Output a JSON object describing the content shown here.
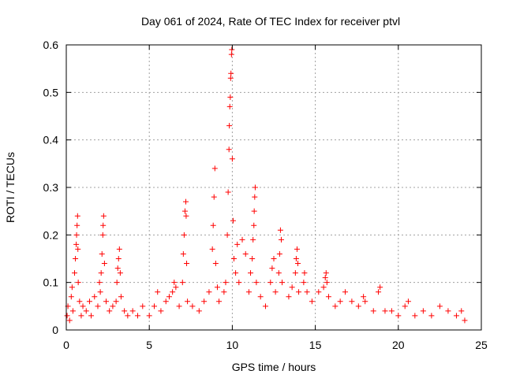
{
  "chart_data": {
    "type": "scatter",
    "title": "Day 061 of 2024, Rate Of TEC Index for receiver ptvl",
    "xlabel": "GPS time / hours",
    "ylabel": "ROTI / TECUs",
    "xlim": [
      0,
      25
    ],
    "ylim": [
      0,
      0.6
    ],
    "xticks": [
      0,
      5,
      10,
      15,
      20,
      25
    ],
    "xtick_labels": [
      "0",
      "5",
      "10",
      "15",
      "20",
      "25"
    ],
    "yticks": [
      0,
      0.1,
      0.2,
      0.3,
      0.4,
      0.5,
      0.6
    ],
    "ytick_labels": [
      "0",
      "0.1",
      "0.2",
      "0.3",
      "0.4",
      "0.5",
      "0.6"
    ],
    "grid": true,
    "marker": "+",
    "marker_color": "#ff0000",
    "series": [
      {
        "name": "ROTI",
        "points": [
          [
            0.05,
            0.03
          ],
          [
            0.1,
            0.05
          ],
          [
            0.2,
            0.02
          ],
          [
            0.3,
            0.07
          ],
          [
            0.35,
            0.09
          ],
          [
            0.4,
            0.04
          ],
          [
            0.5,
            0.12
          ],
          [
            0.55,
            0.15
          ],
          [
            0.6,
            0.18
          ],
          [
            0.62,
            0.2
          ],
          [
            0.65,
            0.22
          ],
          [
            0.68,
            0.24
          ],
          [
            0.7,
            0.17
          ],
          [
            0.72,
            0.1
          ],
          [
            0.8,
            0.06
          ],
          [
            0.9,
            0.03
          ],
          [
            1.0,
            0.05
          ],
          [
            1.2,
            0.04
          ],
          [
            1.4,
            0.06
          ],
          [
            1.5,
            0.03
          ],
          [
            1.7,
            0.07
          ],
          [
            1.9,
            0.05
          ],
          [
            2.0,
            0.1
          ],
          [
            2.05,
            0.08
          ],
          [
            2.1,
            0.12
          ],
          [
            2.15,
            0.16
          ],
          [
            2.2,
            0.2
          ],
          [
            2.22,
            0.22
          ],
          [
            2.25,
            0.24
          ],
          [
            2.3,
            0.14
          ],
          [
            2.4,
            0.06
          ],
          [
            2.6,
            0.04
          ],
          [
            2.8,
            0.05
          ],
          [
            3.0,
            0.06
          ],
          [
            3.05,
            0.1
          ],
          [
            3.1,
            0.13
          ],
          [
            3.15,
            0.15
          ],
          [
            3.2,
            0.17
          ],
          [
            3.25,
            0.12
          ],
          [
            3.3,
            0.07
          ],
          [
            3.5,
            0.04
          ],
          [
            3.7,
            0.03
          ],
          [
            4.0,
            0.04
          ],
          [
            4.3,
            0.03
          ],
          [
            4.6,
            0.05
          ],
          [
            5.0,
            0.03
          ],
          [
            5.3,
            0.05
          ],
          [
            5.5,
            0.08
          ],
          [
            5.7,
            0.04
          ],
          [
            6.0,
            0.06
          ],
          [
            6.2,
            0.07
          ],
          [
            6.4,
            0.08
          ],
          [
            6.5,
            0.1
          ],
          [
            6.6,
            0.09
          ],
          [
            6.8,
            0.05
          ],
          [
            7.0,
            0.1
          ],
          [
            7.05,
            0.16
          ],
          [
            7.1,
            0.2
          ],
          [
            7.15,
            0.25
          ],
          [
            7.2,
            0.27
          ],
          [
            7.22,
            0.24
          ],
          [
            7.25,
            0.14
          ],
          [
            7.3,
            0.06
          ],
          [
            7.6,
            0.05
          ],
          [
            8.0,
            0.04
          ],
          [
            8.3,
            0.06
          ],
          [
            8.6,
            0.08
          ],
          [
            8.8,
            0.17
          ],
          [
            8.85,
            0.22
          ],
          [
            8.9,
            0.28
          ],
          [
            8.95,
            0.34
          ],
          [
            9.0,
            0.14
          ],
          [
            9.1,
            0.09
          ],
          [
            9.2,
            0.06
          ],
          [
            9.5,
            0.08
          ],
          [
            9.6,
            0.1
          ],
          [
            9.7,
            0.2
          ],
          [
            9.75,
            0.29
          ],
          [
            9.8,
            0.38
          ],
          [
            9.82,
            0.43
          ],
          [
            9.85,
            0.47
          ],
          [
            9.88,
            0.49
          ],
          [
            9.9,
            0.53
          ],
          [
            9.92,
            0.54
          ],
          [
            9.95,
            0.58
          ],
          [
            9.97,
            0.59
          ],
          [
            10.0,
            0.36
          ],
          [
            10.05,
            0.23
          ],
          [
            10.1,
            0.15
          ],
          [
            10.2,
            0.12
          ],
          [
            10.3,
            0.18
          ],
          [
            10.4,
            0.1
          ],
          [
            10.6,
            0.19
          ],
          [
            10.8,
            0.16
          ],
          [
            11.0,
            0.08
          ],
          [
            11.1,
            0.12
          ],
          [
            11.2,
            0.15
          ],
          [
            11.25,
            0.19
          ],
          [
            11.3,
            0.22
          ],
          [
            11.32,
            0.25
          ],
          [
            11.35,
            0.28
          ],
          [
            11.38,
            0.3
          ],
          [
            11.45,
            0.1
          ],
          [
            11.7,
            0.07
          ],
          [
            12.0,
            0.05
          ],
          [
            12.3,
            0.1
          ],
          [
            12.4,
            0.13
          ],
          [
            12.5,
            0.15
          ],
          [
            12.6,
            0.08
          ],
          [
            12.8,
            0.12
          ],
          [
            12.85,
            0.16
          ],
          [
            12.9,
            0.21
          ],
          [
            12.95,
            0.19
          ],
          [
            13.0,
            0.1
          ],
          [
            13.4,
            0.07
          ],
          [
            13.6,
            0.09
          ],
          [
            13.8,
            0.12
          ],
          [
            13.85,
            0.15
          ],
          [
            13.9,
            0.17
          ],
          [
            13.95,
            0.14
          ],
          [
            14.0,
            0.08
          ],
          [
            14.3,
            0.1
          ],
          [
            14.35,
            0.12
          ],
          [
            14.5,
            0.08
          ],
          [
            14.8,
            0.06
          ],
          [
            15.2,
            0.08
          ],
          [
            15.5,
            0.09
          ],
          [
            15.6,
            0.11
          ],
          [
            15.65,
            0.12
          ],
          [
            15.7,
            0.1
          ],
          [
            15.8,
            0.07
          ],
          [
            16.2,
            0.05
          ],
          [
            16.5,
            0.06
          ],
          [
            16.8,
            0.08
          ],
          [
            17.2,
            0.06
          ],
          [
            17.6,
            0.05
          ],
          [
            17.9,
            0.07
          ],
          [
            18.0,
            0.06
          ],
          [
            18.5,
            0.04
          ],
          [
            18.8,
            0.08
          ],
          [
            18.9,
            0.09
          ],
          [
            19.2,
            0.04
          ],
          [
            19.6,
            0.04
          ],
          [
            20.0,
            0.03
          ],
          [
            20.4,
            0.05
          ],
          [
            20.6,
            0.06
          ],
          [
            21.0,
            0.03
          ],
          [
            21.5,
            0.04
          ],
          [
            22.0,
            0.03
          ],
          [
            22.5,
            0.05
          ],
          [
            23.0,
            0.04
          ],
          [
            23.5,
            0.03
          ],
          [
            23.8,
            0.04
          ],
          [
            24.0,
            0.02
          ]
        ]
      }
    ]
  }
}
